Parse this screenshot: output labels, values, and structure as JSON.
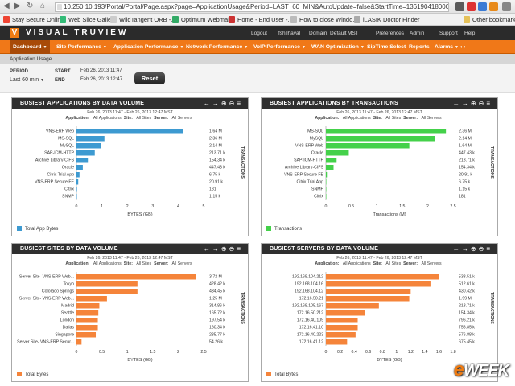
{
  "browser": {
    "url": "10.250.10.193/Portal/Portal/Page.aspx?page=ApplicationUsage&Period=LAST_60_MIN&AutoUpdate=false&StartTime=1361904180000&En",
    "bookmarks": [
      "Stay Secure Online",
      "Web Slice Gallery",
      "WildTangent ORB -...",
      "Optimum Webmail",
      "Home - End User -...",
      "How to close Windo...",
      "iLASIK Doctor Finder"
    ],
    "other_bookmarks": "Other bookmarks"
  },
  "app": {
    "logo_mark": "V",
    "logo_text": "VISUAL TRUVIEW",
    "top_links": [
      "Logout",
      "fshilhaval",
      "Domain: Default",
      "MST",
      "Preferences",
      "Admin",
      "Support",
      "Help"
    ],
    "nav": [
      "Dashboard",
      "Site Performance",
      "Application Performance",
      "Network Performance",
      "VoIP Performance",
      "WAN Optimization",
      "SipTime Select",
      "Reports",
      "Alarms"
    ],
    "nav_more": "‹ ›",
    "sub_title": "Application Usage",
    "filters": {
      "period_label": "PERIOD",
      "period_value": "Last 60 min",
      "start_label": "START",
      "start_value": "Feb 26, 2013 11:47",
      "end_label": "END",
      "end_value": "Feb 26, 2013 12:47",
      "reset": "Reset"
    }
  },
  "panels": [
    {
      "title": "BUSIEST APPLICATIONS BY DATA VOLUME",
      "date": "Feb 26, 2013 11:47 - Feb 26, 2013 12:47 MST",
      "filter_application": "Application:",
      "filter_application_val": "All Applications",
      "filter_site": "Site:",
      "filter_site_val": "All Sites",
      "filter_server": "Server:",
      "filter_server_val": "All Servers",
      "legend": "Total App Bytes",
      "side_label": "TRANSACTIONS"
    },
    {
      "title": "BUSIEST APPLICATIONS BY TRANSACTIONS",
      "date": "Feb 26, 2013 11:47 - Feb 26, 2013 12:47 MST",
      "filter_application": "Application:",
      "filter_application_val": "All Applications",
      "filter_site": "Site:",
      "filter_site_val": "All Sites",
      "filter_server": "Server:",
      "filter_server_val": "All Servers",
      "legend": "Transactions",
      "side_label": "TRANSACTIONS"
    },
    {
      "title": "BUSIEST SITES BY DATA VOLUME",
      "date": "Feb 26, 2013 11:47 - Feb 26, 2013 12:47 MST",
      "filter_application": "Application:",
      "filter_application_val": "All Applications",
      "filter_site": "Site:",
      "filter_site_val": "All Sites",
      "filter_server": "Server:",
      "filter_server_val": "All Servers",
      "legend": "Total Bytes",
      "side_label": "TRANSACTIONS"
    },
    {
      "title": "BUSIEST SERVERS BY DATA VOLUME",
      "date": "Feb 26, 2013 11:47 - Feb 26, 2013 12:47 MST",
      "filter_application": "Application:",
      "filter_application_val": "All Applications",
      "filter_site": "Site:",
      "filter_site_val": "All Sites",
      "filter_server": "Server:",
      "filter_server_val": "All Servers",
      "legend": "Total Bytes",
      "side_label": "TRANSACTIONS"
    }
  ],
  "watermark": {
    "e": "e",
    "rest": "WEEK"
  },
  "chart_data": [
    {
      "type": "bar",
      "orientation": "horizontal",
      "color": "#3d9ad1",
      "categories": [
        "VNS-ERP Web",
        "MS-SQL",
        "MySQL",
        "SAP-ICM-HTTP",
        "Archive Library-CIFS",
        "Oracle",
        "Citrix Trial App",
        "VNS-ERP Secure FE",
        "Citrix",
        "SNMP"
      ],
      "values": [
        4.2,
        1.1,
        0.95,
        0.72,
        0.45,
        0.25,
        0.12,
        0.07,
        0.02,
        0.01
      ],
      "value_labels": [
        "1.64 M",
        "2.36 M",
        "2.14 M",
        "213.71 k",
        "154.34 k",
        "447.43 k",
        "6.75 k",
        "20.91 k",
        "181",
        "1.15 k"
      ],
      "xlim": [
        0,
        5
      ],
      "xticks": [
        "0",
        "1",
        "2",
        "3",
        "4",
        "5"
      ],
      "xlabel": "BYTES (GB)"
    },
    {
      "type": "bar",
      "orientation": "horizontal",
      "color": "#44d14a",
      "categories": [
        "MS-SQL",
        "MySQL",
        "VNS-ERP Web",
        "Oracle",
        "SAP-ICM-HTTP",
        "Archive Library-CIFS",
        "VNS-ERP Secure FE",
        "Citrix Trial App",
        "SNMP",
        "Citrix"
      ],
      "values": [
        2.36,
        2.14,
        1.64,
        0.45,
        0.21,
        0.15,
        0.02,
        0.007,
        0.001,
        0.0002
      ],
      "value_labels": [
        "2.36 M",
        "2.14 M",
        "1.64 M",
        "447.43 k",
        "213.71 k",
        "154.34 k",
        "20.91 k",
        "6.75 k",
        "1.15 k",
        "181"
      ],
      "xlim": [
        0,
        2.5
      ],
      "xticks": [
        "0",
        "0.5",
        "1",
        "1.5",
        "2",
        "2.5"
      ],
      "xlabel": "Transactions (M)"
    },
    {
      "type": "bar",
      "orientation": "horizontal",
      "color": "#f5843a",
      "categories": [
        "Server Site- VNS-ERP Web...",
        "Tokyo",
        "Colorado Springs",
        "Server Site- VNS-ERP Web...",
        "Madrid",
        "Seattle",
        "London",
        "Dallas",
        "Singapore",
        "Server Site- VNS-ERP Secur..."
      ],
      "values": [
        2.35,
        1.2,
        1.2,
        0.6,
        0.45,
        0.43,
        0.42,
        0.42,
        0.38,
        0.1
      ],
      "value_labels": [
        "3.72 M",
        "428.42 k",
        "434.45 k",
        "1.25 M",
        "314.86 k",
        "165.72 k",
        "197.54 k",
        "160.34 k",
        "235.77 k",
        "54.26 k"
      ],
      "xlim": [
        0,
        2.5
      ],
      "xticks": [
        "0",
        "0.5",
        "1",
        "1.5",
        "2",
        "2.5"
      ],
      "xlabel": "BYTES (GB)"
    },
    {
      "type": "bar",
      "orientation": "horizontal",
      "color": "#f5843a",
      "categories": [
        "192.168.104.212",
        "192.168.104.16",
        "192.168.104.12",
        "172.16.50.21",
        "192.168.105.167",
        "172.16.50.212",
        "172.16.40.109",
        "172.16.41.10",
        "172.16.40.223",
        "172.16.41.12"
      ],
      "values": [
        1.6,
        1.48,
        1.2,
        1.18,
        0.75,
        0.55,
        0.45,
        0.45,
        0.42,
        0.3
      ],
      "value_labels": [
        "533.51 k",
        "512.61 k",
        "430.42 k",
        "1.99 M",
        "213.71 k",
        "154.34 k",
        "796.21 k",
        "758.85 k",
        "576.88 k",
        "675.45 k"
      ],
      "xlim": [
        0,
        1.8
      ],
      "xticks": [
        "0",
        "0.2",
        "0.4",
        "0.6",
        "0.8",
        "1",
        "1.2",
        "1.4",
        "1.6",
        "1.8"
      ],
      "xlabel": "BYTES (GB)"
    }
  ]
}
